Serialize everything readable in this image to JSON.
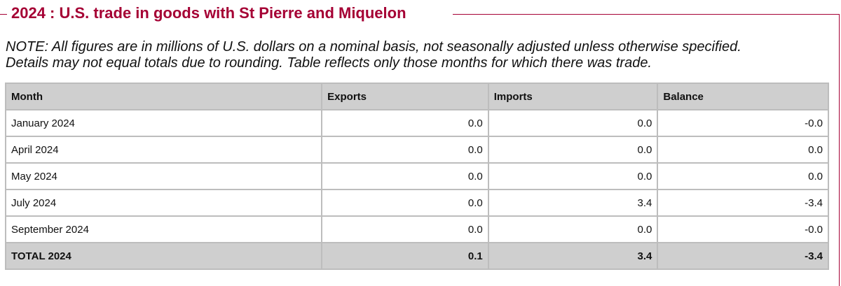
{
  "header": {
    "title": "2024 : U.S. trade in goods with St Pierre and Miquelon"
  },
  "note": {
    "lines": [
      "NOTE: All figures are in millions of U.S. dollars on a nominal basis, not seasonally adjusted unless otherwise specified.",
      "Details may not equal totals due to rounding. Table reflects only those months for which there was trade."
    ]
  },
  "table": {
    "columns": [
      "Month",
      "Exports",
      "Imports",
      "Balance"
    ],
    "rows": [
      [
        "January 2024",
        "0.0",
        "0.0",
        "-0.0"
      ],
      [
        "April 2024",
        "0.0",
        "0.0",
        "0.0"
      ],
      [
        "May 2024",
        "0.0",
        "0.0",
        "0.0"
      ],
      [
        "July 2024",
        "0.0",
        "3.4",
        "-3.4"
      ],
      [
        "September 2024",
        "0.0",
        "0.0",
        "-0.0"
      ]
    ],
    "total": [
      "TOTAL 2024",
      "0.1",
      "3.4",
      "-3.4"
    ]
  }
}
